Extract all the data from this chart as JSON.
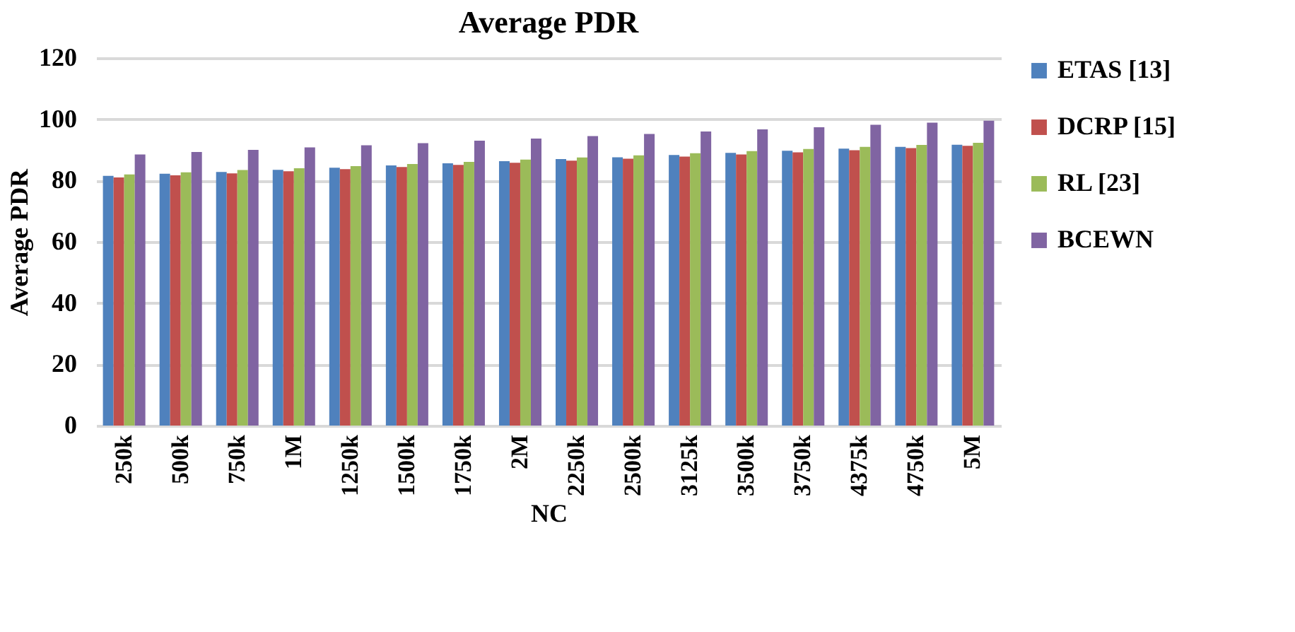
{
  "chart_data": {
    "type": "bar",
    "title": "Average PDR",
    "xlabel": "NC",
    "ylabel": "Average PDR",
    "categories": [
      "250k",
      "500k",
      "750k",
      "1M",
      "1250k",
      "1500k",
      "1750k",
      "2M",
      "2250k",
      "2500k",
      "3125k",
      "3500k",
      "3750k",
      "4375k",
      "4750k",
      "5M"
    ],
    "series": [
      {
        "name": "ETAS [13]",
        "color": "#4f81bd",
        "values": [
          81.5,
          82.2,
          82.8,
          83.5,
          84.2,
          84.9,
          85.6,
          86.3,
          87,
          87.6,
          88.3,
          89,
          89.7,
          90.4,
          91,
          91.7
        ]
      },
      {
        "name": "DCRP [15]",
        "color": "#c0504d",
        "values": [
          81,
          81.7,
          82.3,
          83,
          83.7,
          84.4,
          85.1,
          85.8,
          86.5,
          87.1,
          87.8,
          88.5,
          89.2,
          89.9,
          90.6,
          91.3
        ]
      },
      {
        "name": "RL [23]",
        "color": "#9bbb59",
        "values": [
          82,
          82.7,
          83.4,
          84,
          84.7,
          85.4,
          86.1,
          86.8,
          87.5,
          88.2,
          88.9,
          89.6,
          90.3,
          91,
          91.6,
          92.3
        ]
      },
      {
        "name": "BCEWN",
        "color": "#8064a2",
        "values": [
          88.5,
          89.3,
          90,
          90.8,
          91.5,
          92.2,
          93,
          93.7,
          94.5,
          95.2,
          96,
          96.7,
          97.4,
          98.2,
          98.9,
          99.5
        ]
      }
    ],
    "ylim": [
      0,
      120
    ],
    "yticks": [
      0,
      20,
      40,
      60,
      80,
      100,
      120
    ],
    "grid": "y",
    "legend": "right"
  }
}
